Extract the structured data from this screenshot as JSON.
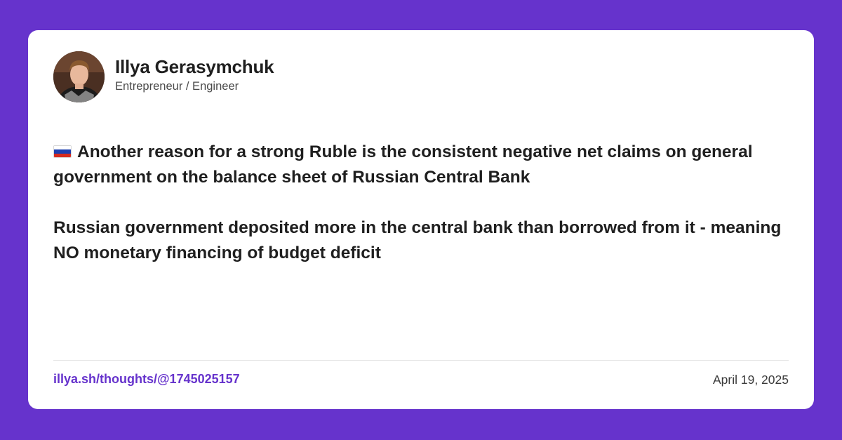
{
  "colors": {
    "background": "#6633cc",
    "card": "#ffffff",
    "link": "#6633cc",
    "text": "#1f1f1f"
  },
  "author": {
    "name": "Illya Gerasymchuk",
    "role": "Entrepreneur / Engineer",
    "avatar": "author-photo"
  },
  "post": {
    "flag_icon": "russia-flag-icon",
    "paragraph_1": "Another reason for a strong Ruble is the consistent negative net claims on general government on the balance sheet of Russian Central Bank",
    "paragraph_2": "Russian government deposited more in the central bank than borrowed from it - meaning NO monetary financing of budget deficit"
  },
  "footer": {
    "link_text": "illya.sh/thoughts/@1745025157",
    "date": "April 19, 2025"
  }
}
